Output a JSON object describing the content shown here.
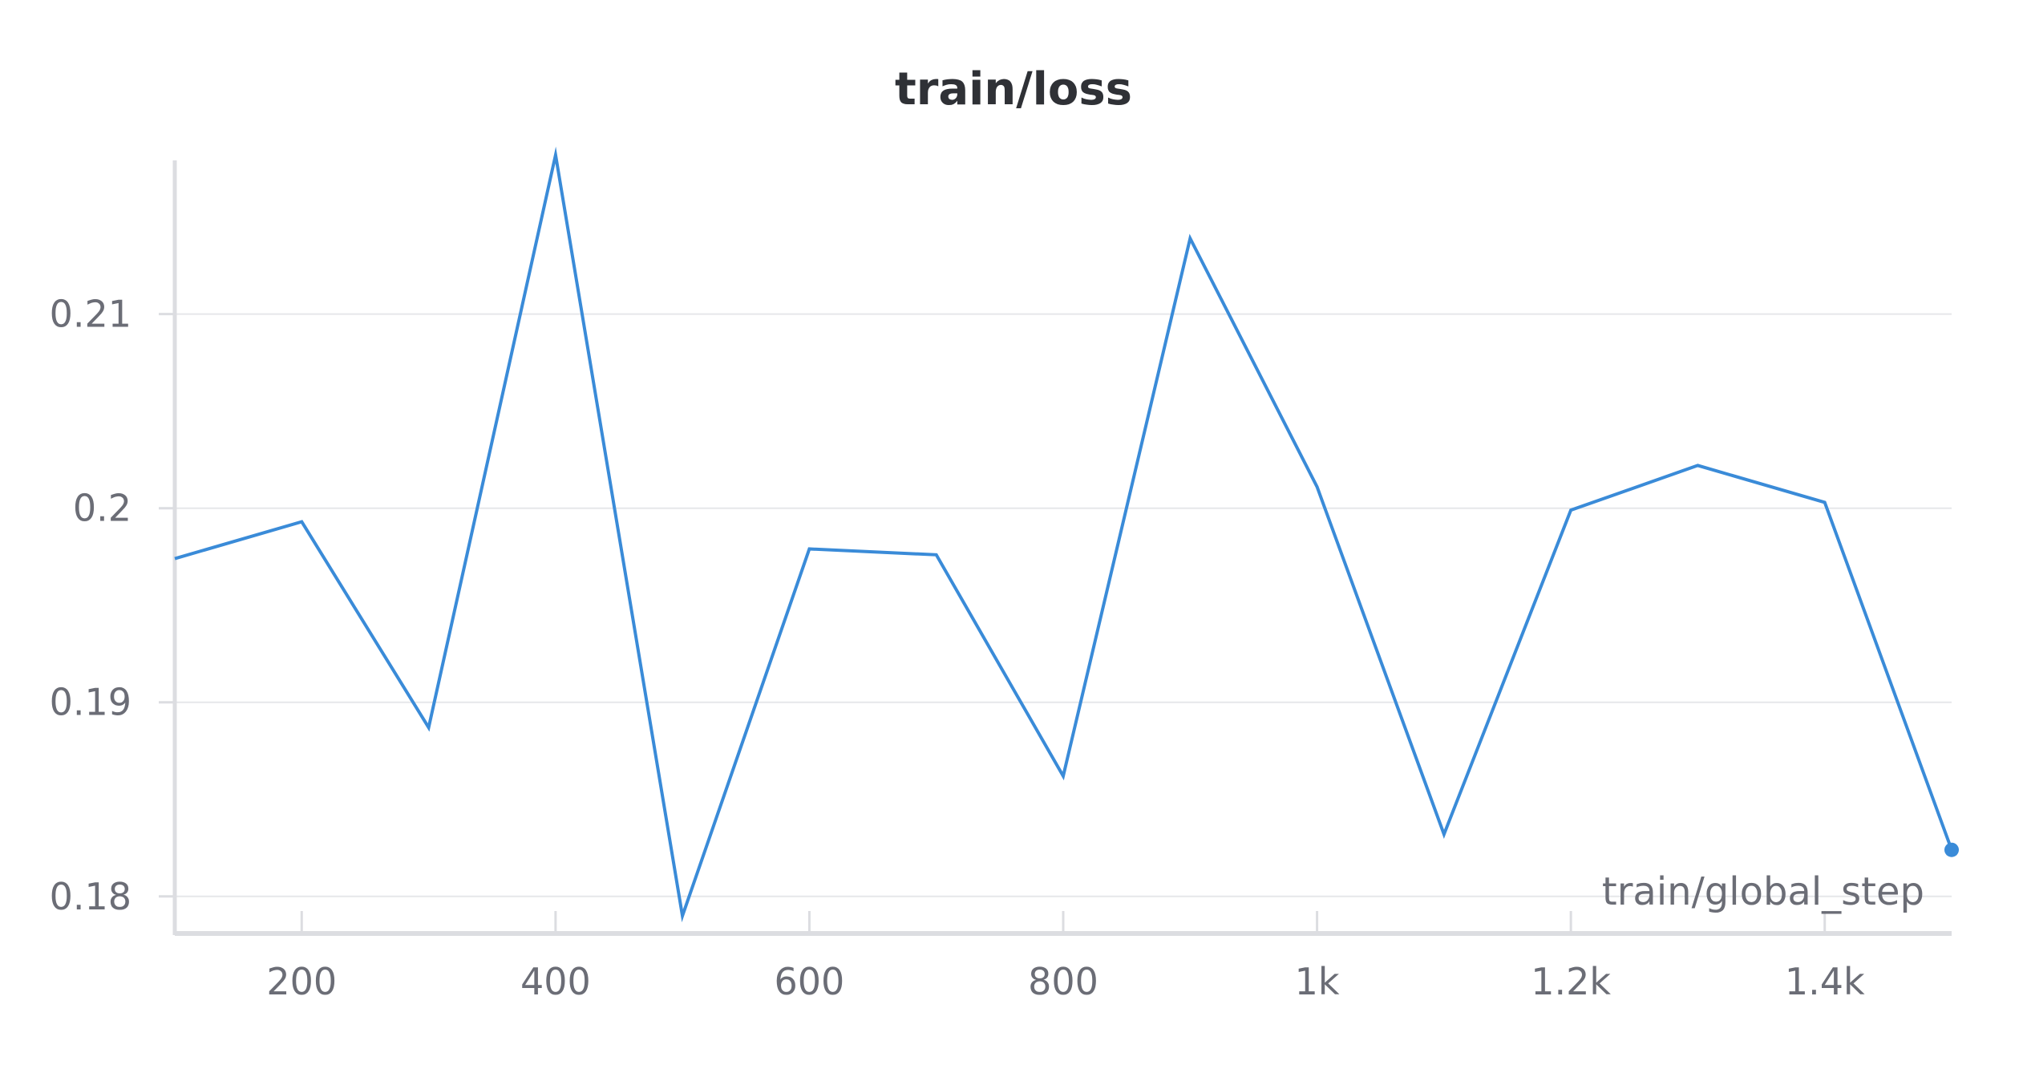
{
  "chart_data": {
    "type": "line",
    "title": "train/loss",
    "xlabel": "train/global_step",
    "ylabel": "",
    "xlim": [
      100,
      1500
    ],
    "ylim": [
      0.179,
      0.218
    ],
    "x_ticks": [
      200,
      400,
      600,
      800,
      1000,
      1200,
      1400
    ],
    "x_tick_labels": [
      "200",
      "400",
      "600",
      "800",
      "1k",
      "1.2k",
      "1.4k"
    ],
    "y_ticks": [
      0.18,
      0.19,
      0.2,
      0.21
    ],
    "y_tick_labels": [
      "0.18",
      "0.19",
      "0.2",
      "0.21"
    ],
    "grid": "horizontal",
    "series": [
      {
        "color": "#3a8bd8",
        "x": [
          100,
          200,
          300,
          400,
          500,
          600,
          700,
          800,
          900,
          1000,
          1100,
          1200,
          1300,
          1400,
          1500
        ],
        "values": [
          0.1974,
          0.1993,
          0.1887,
          0.2182,
          0.179,
          0.1979,
          0.1976,
          0.1862,
          0.2139,
          0.2011,
          0.1832,
          0.1999,
          0.2022,
          0.2003,
          0.1824
        ]
      }
    ]
  }
}
